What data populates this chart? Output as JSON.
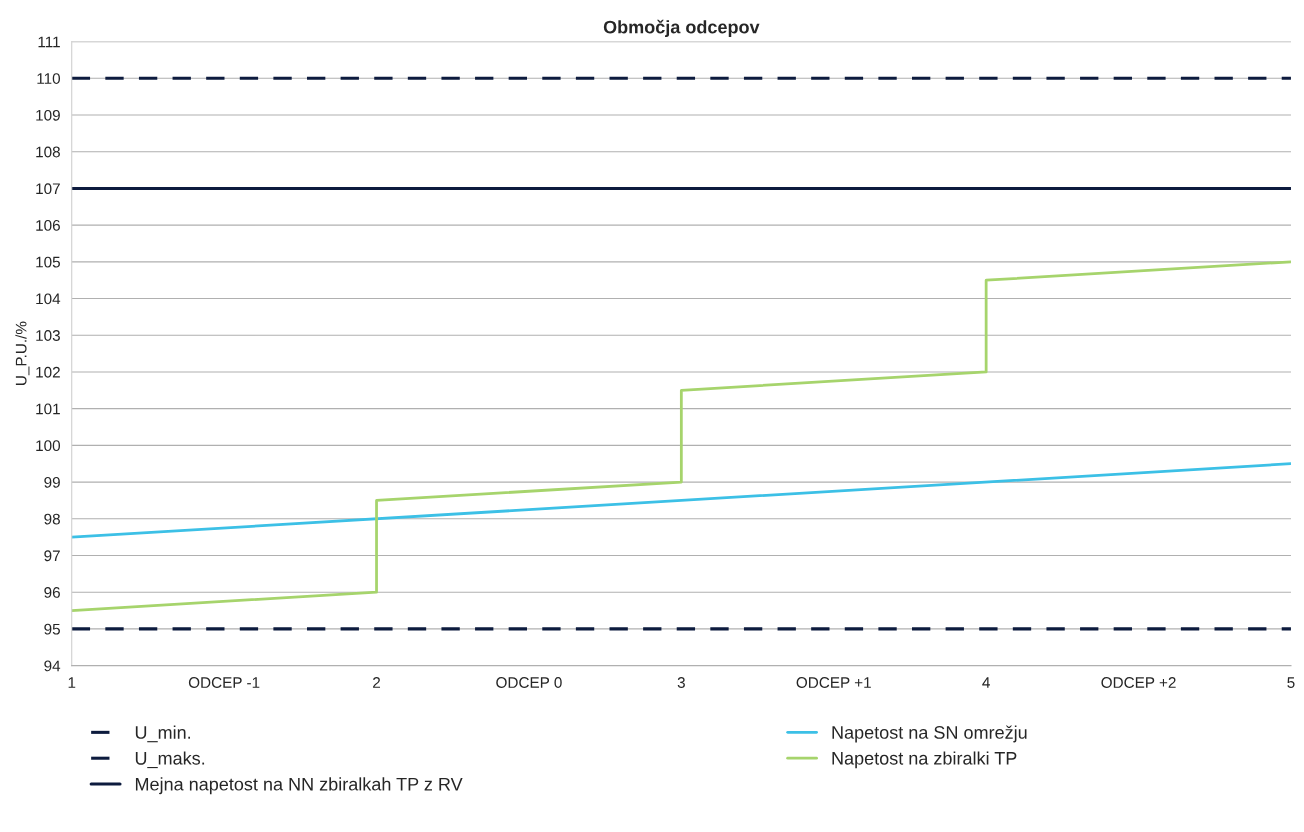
{
  "chart_data": {
    "type": "line",
    "title": "Območja odcepov",
    "ylabel": "U_P.U./%",
    "ylim": [
      94,
      111
    ],
    "yticks": [
      94,
      95,
      96,
      97,
      98,
      99,
      100,
      101,
      102,
      103,
      104,
      105,
      106,
      107,
      108,
      109,
      110,
      111
    ],
    "xlim": [
      1,
      5
    ],
    "xticks": [
      1,
      2,
      3,
      4,
      5
    ],
    "x2lim": [
      -1.5,
      2.5
    ],
    "x2ticks": [
      {
        "value": -1,
        "label": "ODCEP -1"
      },
      {
        "value": 0,
        "label": "ODCEP 0"
      },
      {
        "value": 1,
        "label": "ODCEP +1"
      },
      {
        "value": 2,
        "label": "ODCEP +2"
      }
    ],
    "grid": "y",
    "legend": "bottom",
    "marker": "none",
    "series": [
      {
        "name": "U_min.",
        "color": "#0d1b3e",
        "line_style": "dashed",
        "x": [
          1,
          5
        ],
        "values": [
          95,
          95
        ]
      },
      {
        "name": "U_maks.",
        "color": "#0d1b3e",
        "line_style": "dashed",
        "x": [
          1,
          5
        ],
        "values": [
          110,
          110
        ]
      },
      {
        "name": "Mejna napetost na NN zbiralkah TP z RV",
        "color": "#0d1b3e",
        "line_style": "solid",
        "x": [
          1,
          5
        ],
        "values": [
          107,
          107
        ]
      },
      {
        "name": "Napetost na SN omrežju",
        "color": "#3cc0e6",
        "line_style": "solid",
        "x": [
          1,
          5
        ],
        "values": [
          97.5,
          99.5
        ]
      },
      {
        "name": "Napetost na zbiralki TP",
        "color": "#a6d46c",
        "line_style": "solid",
        "x": [
          1,
          2,
          2,
          3,
          3,
          4,
          4,
          5
        ],
        "values": [
          95.5,
          96,
          98.5,
          99,
          101.5,
          102,
          104.5,
          105
        ]
      }
    ]
  }
}
